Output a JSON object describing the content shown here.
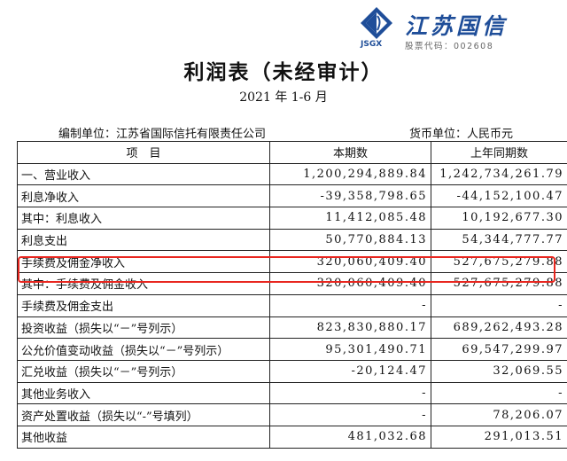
{
  "logo": {
    "name": "江苏国信",
    "abbr": "JSGX",
    "stock_code": "股票代码：002608"
  },
  "title": "利润表（未经审计）",
  "period": "2021 年 1-6 月",
  "meta": {
    "org": "编制单位：江苏省国际信托有限责任公司",
    "currency": "货币单位：人民币元"
  },
  "table": {
    "headers": [
      "项　目",
      "本期数",
      "上年同期数"
    ],
    "rows": [
      {
        "label": "一、营业收入",
        "current": "1,200,294,889.84",
        "prior": "1,242,734,261.79"
      },
      {
        "label": "利息净收入",
        "current": "-39,358,798.65",
        "prior": "-44,152,100.47"
      },
      {
        "label": "其中：利息收入",
        "current": "11,412,085.48",
        "prior": "10,192,677.30"
      },
      {
        "label": "利息支出",
        "current": "50,770,884.13",
        "prior": "54,344,777.77"
      },
      {
        "label": "手续费及佣金净收入",
        "current": "320,060,409.40",
        "prior": "527,675,279.88"
      },
      {
        "label": "其中：手续费及佣金收入",
        "current": "320,060,409.40",
        "prior": "527,675,279.88"
      },
      {
        "label": "手续费及佣金支出",
        "current": "-",
        "prior": "-"
      },
      {
        "label": "投资收益（损失以“－”号列示）",
        "current": "823,830,880.17",
        "prior": "689,262,493.28"
      },
      {
        "label": "公允价值变动收益（损失以“－”号列示）",
        "current": "95,301,490.71",
        "prior": "69,547,299.97"
      },
      {
        "label": "汇兑收益（损失以“－”号列示）",
        "current": "-20,124.47",
        "prior": "32,069.55"
      },
      {
        "label": "其他业务收入",
        "current": "-",
        "prior": "-"
      },
      {
        "label": "资产处置收益（损失以“-”号填列）",
        "current": "-",
        "prior": "78,206.07"
      },
      {
        "label": "其他收益",
        "current": "481,032.68",
        "prior": "291,013.51"
      }
    ]
  },
  "colors": {
    "brand": "#1f4e99",
    "highlight": "#e8261f"
  }
}
